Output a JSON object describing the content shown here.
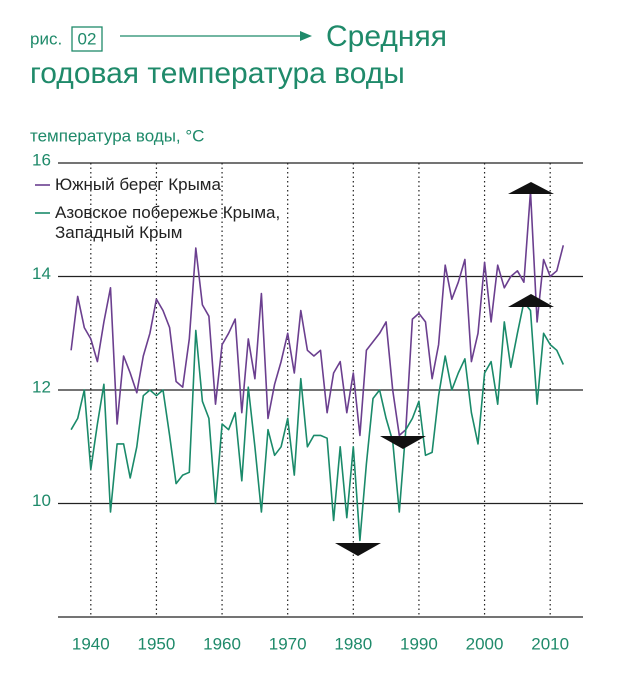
{
  "header": {
    "fig_prefix": "рис.",
    "fig_number": "02"
  },
  "chart_data": {
    "type": "line",
    "title": "Средняя годовая температура воды",
    "y_label": "температура воды, °С",
    "x": [
      1937,
      1938,
      1939,
      1940,
      1941,
      1942,
      1943,
      1944,
      1945,
      1946,
      1947,
      1948,
      1949,
      1950,
      1951,
      1952,
      1953,
      1954,
      1955,
      1956,
      1957,
      1958,
      1959,
      1960,
      1961,
      1962,
      1963,
      1964,
      1965,
      1966,
      1967,
      1968,
      1969,
      1970,
      1971,
      1972,
      1973,
      1974,
      1975,
      1976,
      1977,
      1978,
      1979,
      1980,
      1981,
      1982,
      1983,
      1984,
      1985,
      1986,
      1987,
      1988,
      1989,
      1990,
      1991,
      1992,
      1993,
      1994,
      1995,
      1996,
      1997,
      1998,
      1999,
      2000,
      2001,
      2002,
      2003,
      2004,
      2005,
      2006,
      2007,
      2008,
      2009,
      2010,
      2011,
      2012
    ],
    "series": [
      {
        "name": "Южный берег Крыма",
        "color": "#6b3f8f",
        "values": [
          12.7,
          13.65,
          13.1,
          12.9,
          12.5,
          13.2,
          13.8,
          11.4,
          12.6,
          12.3,
          11.95,
          12.6,
          13.0,
          13.6,
          13.4,
          13.1,
          12.15,
          12.05,
          12.9,
          14.5,
          13.5,
          13.3,
          11.75,
          12.8,
          13.0,
          13.25,
          11.6,
          12.9,
          12.2,
          13.7,
          11.5,
          12.1,
          12.5,
          13.0,
          12.3,
          13.4,
          12.7,
          12.6,
          12.7,
          11.6,
          12.3,
          12.5,
          11.6,
          12.3,
          11.2,
          12.7,
          12.85,
          13.0,
          13.2,
          12.0,
          11.2,
          11.3,
          13.25,
          13.35,
          13.2,
          12.2,
          12.8,
          14.2,
          13.6,
          13.9,
          14.3,
          12.5,
          13.0,
          14.25,
          13.2,
          14.2,
          13.8,
          14.0,
          14.1,
          13.9,
          15.5,
          13.2,
          14.3,
          14.0,
          14.1,
          14.55
        ]
      },
      {
        "name": "Азовское побережье Крыма, Западный Крым",
        "color": "#1a8a6a",
        "values": [
          11.3,
          11.5,
          12.0,
          10.6,
          11.4,
          12.1,
          9.85,
          11.05,
          11.05,
          10.45,
          11.0,
          11.9,
          12.0,
          11.9,
          12.0,
          11.2,
          10.35,
          10.5,
          10.55,
          13.05,
          11.8,
          11.5,
          10.0,
          11.4,
          11.3,
          11.6,
          10.4,
          12.05,
          11.0,
          9.85,
          11.3,
          10.85,
          11.0,
          11.5,
          10.5,
          12.2,
          11.0,
          11.2,
          11.2,
          11.15,
          9.7,
          11.0,
          9.75,
          11.0,
          9.35,
          10.7,
          11.85,
          12.0,
          11.5,
          11.1,
          9.85,
          11.3,
          11.5,
          11.8,
          10.85,
          10.9,
          11.9,
          12.6,
          12.0,
          12.3,
          12.55,
          11.6,
          11.05,
          12.3,
          12.5,
          11.75,
          13.2,
          12.4,
          13.0,
          13.55,
          13.4,
          11.75,
          13.0,
          12.8,
          12.7,
          12.45
        ]
      }
    ],
    "xlim": [
      1935,
      2015
    ],
    "xticks": [
      1940,
      1950,
      1960,
      1970,
      1980,
      1990,
      2000,
      2010
    ],
    "ylim": [
      8,
      16
    ],
    "yticks": [
      10,
      12,
      14,
      16
    ],
    "grid": true,
    "x_grid_style": "dotted"
  }
}
